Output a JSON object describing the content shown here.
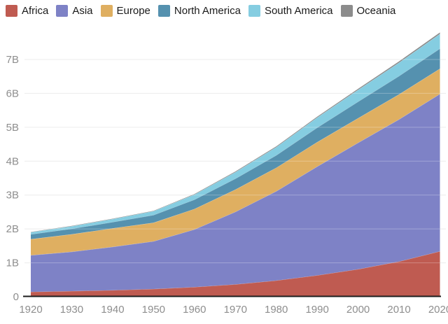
{
  "chart_data": {
    "type": "area",
    "stacked": true,
    "title": "",
    "xlabel": "",
    "ylabel": "",
    "units": "billions of people",
    "legend_position": "top-left",
    "grid": "horizontal",
    "x": [
      1920,
      1930,
      1940,
      1950,
      1960,
      1970,
      1980,
      1990,
      2000,
      2010,
      2020
    ],
    "x_tick_labels": [
      "1920",
      "1930",
      "1940",
      "1950",
      "1960",
      "1970",
      "1980",
      "1990",
      "2000",
      "2010",
      "2020"
    ],
    "xlim": [
      1920,
      2020
    ],
    "ylim": [
      0,
      8
    ],
    "y_tick_values": [
      0,
      1,
      2,
      3,
      4,
      5,
      6,
      7
    ],
    "y_tick_labels": [
      "0",
      "1B",
      "2B",
      "3B",
      "4B",
      "5B",
      "6B",
      "7B"
    ],
    "series": [
      {
        "name": "Africa",
        "color": "#bf5b51",
        "values": [
          0.143,
          0.165,
          0.191,
          0.228,
          0.284,
          0.363,
          0.476,
          0.63,
          0.811,
          1.039,
          1.341
        ]
      },
      {
        "name": "Asia",
        "color": "#7e82c6",
        "values": [
          1.08,
          1.16,
          1.28,
          1.405,
          1.7,
          2.142,
          2.635,
          3.21,
          3.731,
          4.194,
          4.641
        ]
      },
      {
        "name": "Europe",
        "color": "#dfaf61",
        "values": [
          0.475,
          0.517,
          0.549,
          0.549,
          0.606,
          0.657,
          0.694,
          0.721,
          0.726,
          0.736,
          0.748
        ]
      },
      {
        "name": "North America",
        "color": "#5591af",
        "values": [
          0.142,
          0.163,
          0.181,
          0.227,
          0.277,
          0.322,
          0.368,
          0.427,
          0.486,
          0.542,
          0.592
        ]
      },
      {
        "name": "South America",
        "color": "#85cde1",
        "values": [
          0.061,
          0.075,
          0.09,
          0.114,
          0.147,
          0.192,
          0.241,
          0.297,
          0.349,
          0.394,
          0.431
        ]
      },
      {
        "name": "Oceania",
        "color": "#8c8c8c",
        "values": [
          0.009,
          0.01,
          0.011,
          0.013,
          0.016,
          0.02,
          0.023,
          0.027,
          0.031,
          0.037,
          0.043
        ]
      }
    ],
    "style": {
      "background": "#ffffff",
      "axis_line_color": "#1d1d1d",
      "tick_label_color": "#8e8e8e",
      "gridline_color": "#e7e7e7",
      "legend_text_color": "#1a1a1a"
    }
  }
}
